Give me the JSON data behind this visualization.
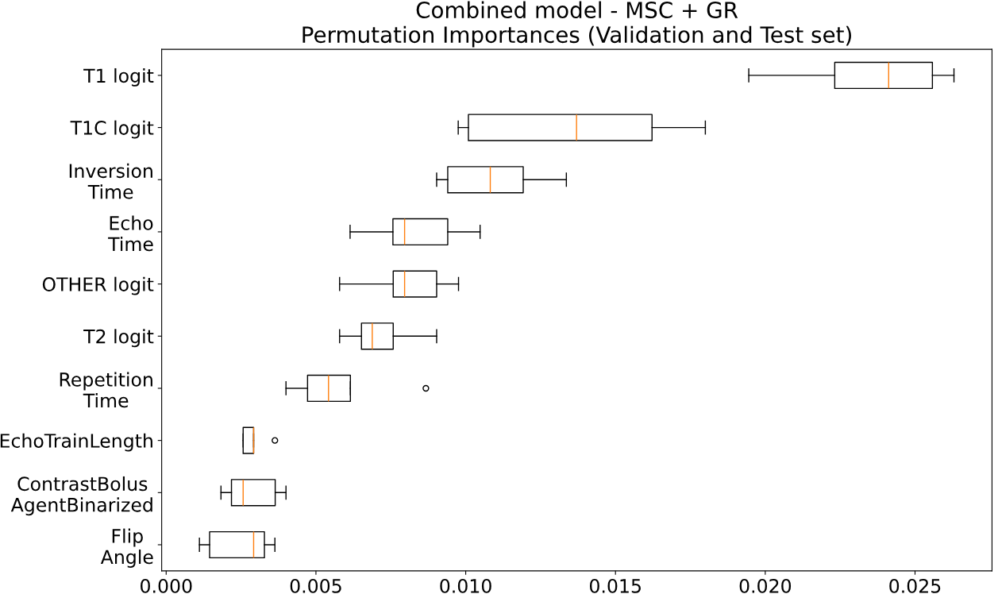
{
  "chart_data": {
    "type": "box",
    "orientation": "horizontal",
    "title": "Combined model - MSC + GR\nPermutation Importances (Validation and Test set)",
    "categories": [
      "T1 logit",
      "T1C logit",
      "Inversion\nTime",
      "Echo\nTime",
      "OTHER logit",
      "T2 logit",
      "Repetition\nTime",
      "EchoTrainLength",
      "ContrastBolus\nAgentBinarized",
      "Flip\nAngle"
    ],
    "series": [
      {
        "color": "#000000",
        "boxes": [
          {
            "low": 0.01945,
            "q1": 0.02232,
            "median": 0.02412,
            "q3": 0.02558,
            "high": 0.0263
          },
          {
            "low": 0.00975,
            "q1": 0.01009,
            "median": 0.0137,
            "q3": 0.01622,
            "high": 0.018
          },
          {
            "low": 0.00903,
            "q1": 0.0094,
            "median": 0.01082,
            "q3": 0.01192,
            "high": 0.01336
          },
          {
            "low": 0.00614,
            "q1": 0.00757,
            "median": 0.00796,
            "q3": 0.0094,
            "high": 0.01048
          },
          {
            "low": 0.00579,
            "q1": 0.00758,
            "median": 0.00796,
            "q3": 0.00903,
            "high": 0.00976
          },
          {
            "low": 0.00579,
            "q1": 0.00652,
            "median": 0.00688,
            "q3": 0.00758,
            "high": 0.00903
          },
          {
            "low": 0.004,
            "q1": 0.00472,
            "median": 0.00542,
            "q3": 0.00615,
            "high": 0.00615,
            "outliers": [
              0.00867
            ]
          },
          {
            "low": 0.00257,
            "q1": 0.00257,
            "median": 0.00292,
            "q3": 0.00292,
            "high": 0.00292,
            "outliers": [
              0.00363
            ]
          },
          {
            "low": 0.00183,
            "q1": 0.00218,
            "median": 0.00257,
            "q3": 0.00364,
            "high": 0.004
          },
          {
            "low": 0.00111,
            "q1": 0.00145,
            "median": 0.00292,
            "q3": 0.00328,
            "high": 0.00363
          }
        ]
      }
    ],
    "xlim": [
      -0.00015,
      0.02757
    ],
    "xticks": [
      {
        "value": 0,
        "label": "0.000"
      },
      {
        "value": 0.005,
        "label": "0.005"
      },
      {
        "value": 0.01,
        "label": "0.010"
      },
      {
        "value": 0.015,
        "label": "0.015"
      },
      {
        "value": 0.02,
        "label": "0.020"
      },
      {
        "value": 0.025,
        "label": "0.025"
      }
    ],
    "grid": false,
    "legend": false
  }
}
